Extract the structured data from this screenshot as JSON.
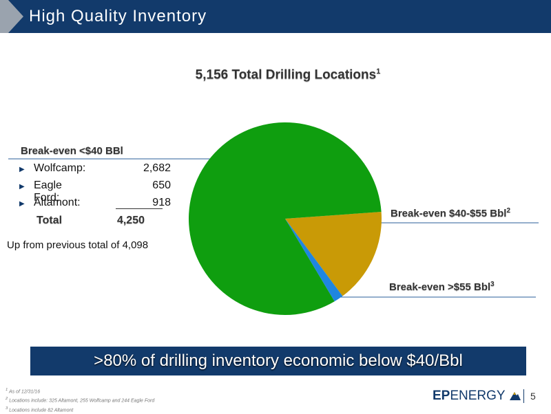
{
  "header": {
    "title": "High Quality Inventory"
  },
  "chart_data": {
    "type": "pie",
    "title": "5,156 Total Drilling Locations",
    "title_footnote": "1",
    "slices": [
      {
        "label": "Break-even <$40 BBl",
        "value": 4250,
        "color": "#0f9e0f"
      },
      {
        "label": "Break-even $40-$55 Bbl",
        "footnote": "2",
        "value": 824,
        "color": "#c99a06"
      },
      {
        "label": "Break-even >$55 Bbl",
        "footnote": "3",
        "value": 82,
        "color": "#1f86e0"
      }
    ]
  },
  "breakdown": {
    "items": [
      {
        "name": "Wolfcamp:",
        "value": "2,682"
      },
      {
        "name": "Eagle Ford:",
        "value": "650"
      },
      {
        "name": "Altamont:",
        "value": "918"
      }
    ],
    "total_label": "Total",
    "total_value": "4,250"
  },
  "note": "Up from previous total of 4,098",
  "banner": ">80% of drilling inventory economic below $40/Bbl",
  "footnotes": [
    {
      "num": "1",
      "text": "As of 12/31/16"
    },
    {
      "num": "2",
      "text": "Locations include: 325 Altamont, 255 Wolfcamp and 244 Eagle Ford"
    },
    {
      "num": "3",
      "text": "Locations include 82 Altamont"
    }
  ],
  "logo": {
    "ep": "EP",
    "energy": "ENERGY"
  },
  "page_number": "5",
  "colors": {
    "brand_navy": "#123a6b"
  }
}
